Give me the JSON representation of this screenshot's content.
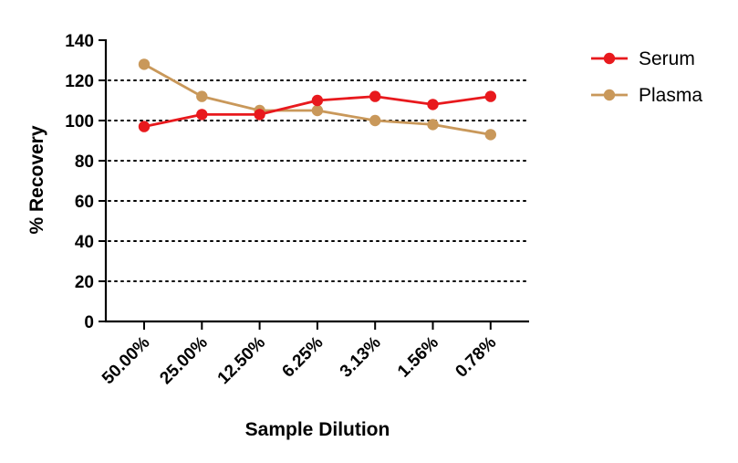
{
  "chart_data": {
    "type": "line",
    "title": "",
    "xlabel": "Sample Dilution",
    "ylabel": "% Recovery",
    "categories": [
      "50.00%",
      "25.00%",
      "12.50%",
      "6.25%",
      "3.13%",
      "1.56%",
      "0.78%"
    ],
    "ylim": [
      0,
      140
    ],
    "yticks": [
      0,
      20,
      40,
      60,
      80,
      100,
      120,
      140
    ],
    "grid": "horizontal dotted",
    "legend": "top-right",
    "series": [
      {
        "name": "Serum",
        "color": "#e8191d",
        "values": [
          97,
          103,
          103,
          110,
          112,
          108,
          112
        ]
      },
      {
        "name": "Plasma",
        "color": "#c9985a",
        "values": [
          128,
          112,
          105,
          105,
          100,
          98,
          93
        ]
      }
    ]
  }
}
